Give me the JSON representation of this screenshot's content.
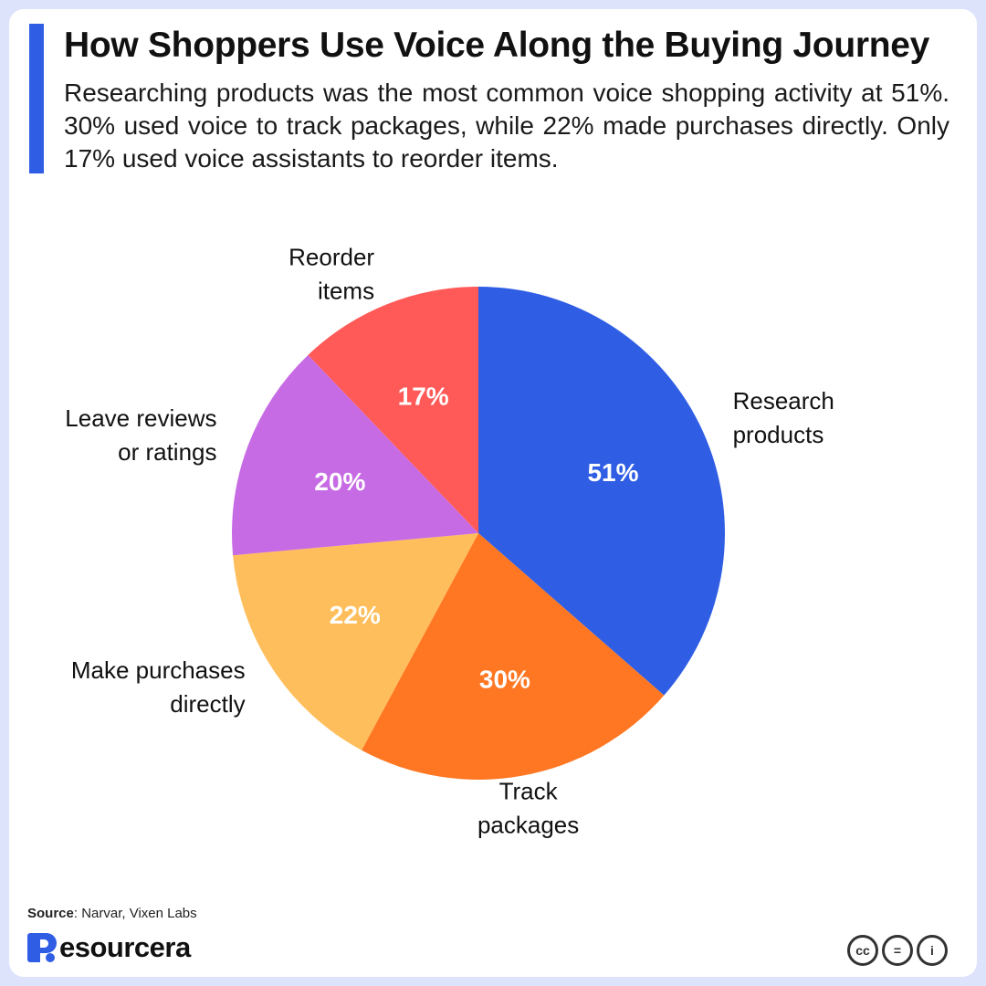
{
  "header": {
    "title": "How Shoppers Use Voice Along the Buying Journey",
    "subtitle": "Researching products was the most common voice shopping activity at 51%. 30% used voice to track packages, while 22% made purchases directly. Only 17% used voice assistants to reorder items."
  },
  "chart_data": {
    "type": "pie",
    "title": "How Shoppers Use Voice Along the Buying Journey",
    "start_angle_deg": 0,
    "direction": "clockwise",
    "slices": [
      {
        "label_lines": [
          "Research",
          "products"
        ],
        "value": 51,
        "value_label": "51%",
        "color": "#2f5ee5"
      },
      {
        "label_lines": [
          "Track",
          "packages"
        ],
        "value": 30,
        "value_label": "30%",
        "color": "#ff7722"
      },
      {
        "label_lines": [
          "Make purchases",
          "directly"
        ],
        "value": 22,
        "value_label": "22%",
        "color": "#ffbe5c"
      },
      {
        "label_lines": [
          "Leave reviews",
          "or ratings"
        ],
        "value": 20,
        "value_label": "20%",
        "color": "#c76be5"
      },
      {
        "label_lines": [
          "Reorder",
          "items"
        ],
        "value": 17,
        "value_label": "17%",
        "color": "#ff5a58"
      }
    ]
  },
  "footer": {
    "source_label": "Source",
    "source_text": ": Narvar, Vixen Labs",
    "brand_name": "esourcera",
    "license_icons": [
      "cc",
      "=",
      "i"
    ]
  },
  "colors": {
    "accent": "#2f5ee5",
    "background": "#dde3fb"
  }
}
